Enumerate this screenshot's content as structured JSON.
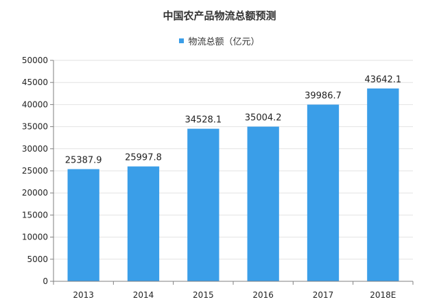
{
  "chart_data": {
    "type": "bar",
    "title": "中国农产品物流总额预测",
    "categories": [
      "2013",
      "2014",
      "2015",
      "2016",
      "2017",
      "2018E"
    ],
    "series": [
      {
        "name": "物流总额（亿元）",
        "values": [
          25387.9,
          25997.8,
          34528.1,
          35004.2,
          39986.7,
          43642.1
        ],
        "data_labels": [
          "25387.9",
          "25997.8",
          "34528.1",
          "35004.2",
          "39986.7",
          "43642.1"
        ]
      }
    ],
    "ylim": [
      0,
      50000
    ],
    "yticks": [
      0,
      5000,
      10000,
      15000,
      20000,
      25000,
      30000,
      35000,
      40000,
      45000,
      50000
    ],
    "xlabel": "",
    "ylabel": "",
    "grid": true,
    "legend_position": "top-center",
    "colors": {
      "bar": "#3a9ee8",
      "grid": "#e2e2e2",
      "axis": "#7f7f7f"
    }
  }
}
